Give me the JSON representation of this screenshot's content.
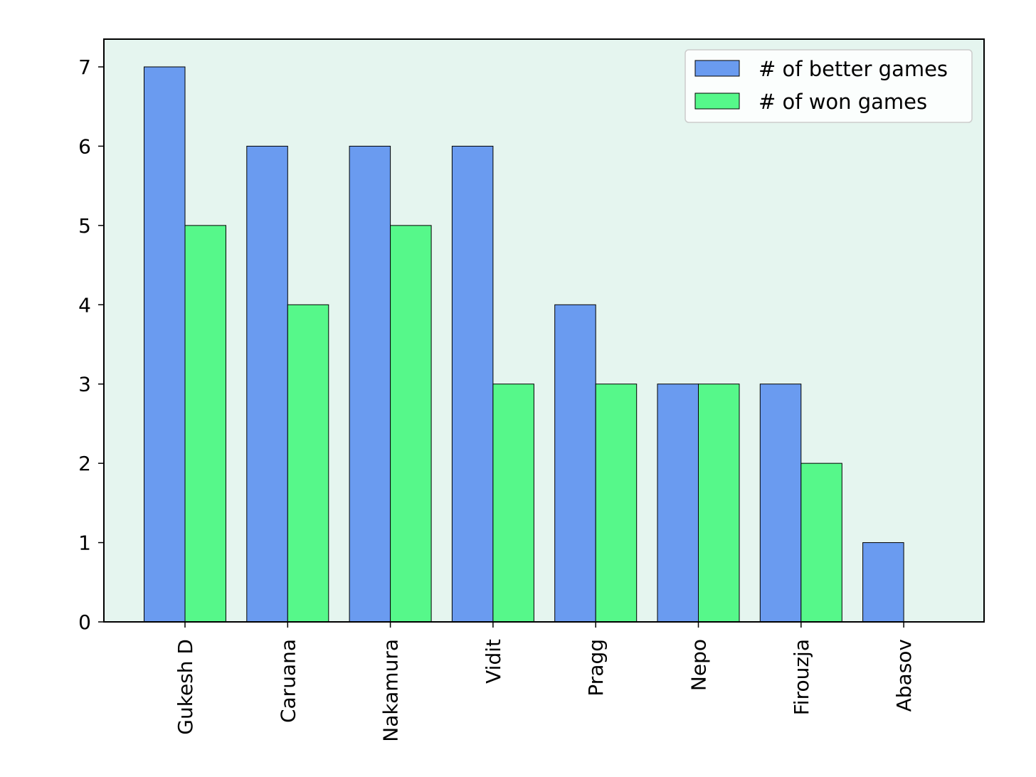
{
  "chart_data": {
    "type": "bar",
    "title": "",
    "xlabel": "",
    "ylabel": "",
    "categories": [
      "Gukesh D",
      "Caruana",
      "Nakamura",
      "Vidit",
      "Pragg",
      "Nepo",
      "Firouzja",
      "Abasov"
    ],
    "series": [
      {
        "name": "# of better games",
        "values": [
          7,
          6,
          6,
          6,
          4,
          3,
          3,
          1
        ],
        "color": "#6a9bf0"
      },
      {
        "name": "# of won games",
        "values": [
          5,
          4,
          5,
          3,
          3,
          3,
          2,
          0
        ],
        "color": "#56f88a"
      }
    ],
    "ylim": [
      0,
      7.35
    ],
    "yticks": [
      0,
      1,
      2,
      3,
      4,
      5,
      6,
      7
    ],
    "plot_background": "#e5f5ef",
    "legend_position": "top-right",
    "x_tick_rotation": "vertical",
    "grid": false
  }
}
